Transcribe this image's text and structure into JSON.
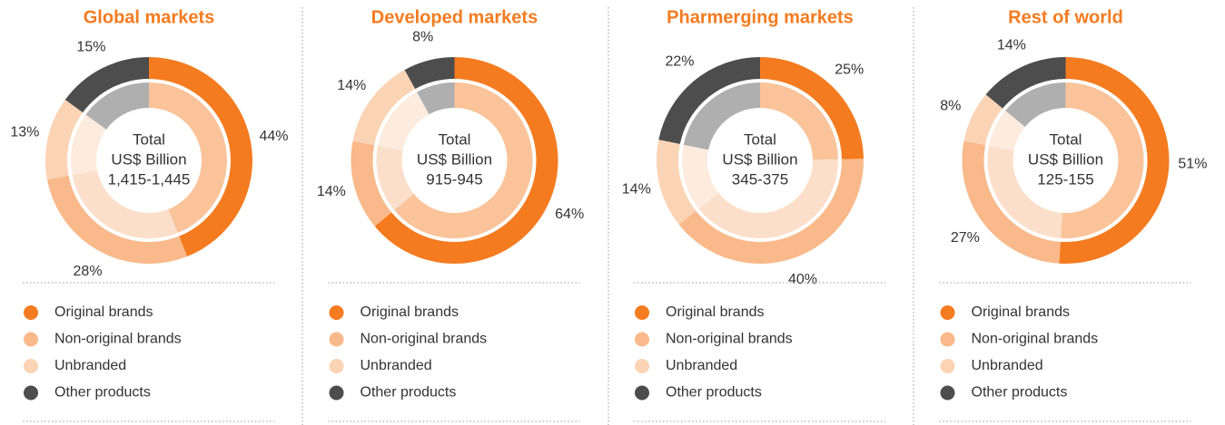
{
  "chart_data": [
    {
      "type": "pie",
      "title": "Global markets",
      "center_text": [
        "Total",
        "US$ Billion",
        "1,415-1,445"
      ],
      "categories": [
        "Original brands",
        "Non-original brands",
        "Unbranded",
        "Other products"
      ],
      "values": [
        44,
        28,
        13,
        15
      ],
      "value_labels": [
        "44%",
        "28%",
        "13%",
        "15%"
      ],
      "colors": [
        "#f47b20",
        "#f9b98a",
        "#fbd3b5",
        "#4d4d4d"
      ]
    },
    {
      "type": "pie",
      "title": "Developed markets",
      "center_text": [
        "Total",
        "US$ Billion",
        "915-945"
      ],
      "categories": [
        "Original brands",
        "Non-original brands",
        "Unbranded",
        "Other products"
      ],
      "values": [
        64,
        14,
        14,
        8
      ],
      "value_labels": [
        "64%",
        "14%",
        "14%",
        "8%"
      ],
      "colors": [
        "#f47b20",
        "#f9b98a",
        "#fbd3b5",
        "#4d4d4d"
      ]
    },
    {
      "type": "pie",
      "title": "Pharmerging markets",
      "center_text": [
        "Total",
        "US$ Billion",
        "345-375"
      ],
      "categories": [
        "Original brands",
        "Non-original brands",
        "Unbranded",
        "Other products"
      ],
      "values": [
        25,
        40,
        14,
        22
      ],
      "value_labels": [
        "25%",
        "40%",
        "14%",
        "22%"
      ],
      "colors": [
        "#f47b20",
        "#f9b98a",
        "#fbd3b5",
        "#4d4d4d"
      ]
    },
    {
      "type": "pie",
      "title": "Rest of world",
      "center_text": [
        "Total",
        "US$ Billion",
        "125-155"
      ],
      "categories": [
        "Original brands",
        "Non-original brands",
        "Unbranded",
        "Other products"
      ],
      "values": [
        51,
        27,
        8,
        14
      ],
      "value_labels": [
        "51%",
        "27%",
        "8%",
        "14%"
      ],
      "colors": [
        "#f47b20",
        "#f9b98a",
        "#fbd3b5",
        "#4d4d4d"
      ]
    }
  ]
}
